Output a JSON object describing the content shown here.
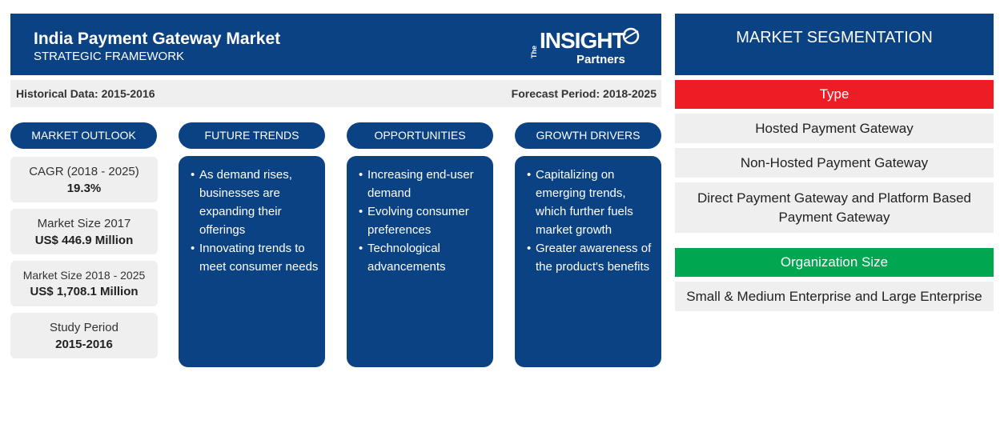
{
  "header": {
    "title": "India Payment Gateway Market",
    "subtitle": "STRATEGIC FRAMEWORK",
    "logo_the": "The",
    "logo_main": "INSIGHT",
    "logo_sub": "Partners"
  },
  "periods": {
    "historical": "Historical Data: 2015-2016",
    "forecast": "Forecast Period: 2018-2025"
  },
  "columns": [
    {
      "heading": "MARKET OUTLOOK"
    },
    {
      "heading": "FUTURE TRENDS",
      "bullets": [
        "As demand rises, businesses are expanding their offerings",
        "Innovating trends to meet consumer needs"
      ]
    },
    {
      "heading": "OPPORTUNITIES",
      "bullets": [
        "Increasing end-user demand",
        "Evolving consumer preferences",
        "Technological advancements"
      ]
    },
    {
      "heading": "GROWTH DRIVERS",
      "bullets": [
        "Capitalizing on emerging trends, which further fuels market growth",
        "Greater awareness of the product's benefits"
      ]
    }
  ],
  "outlook": [
    {
      "label": "CAGR (2018 - 2025)",
      "value": "19.3%"
    },
    {
      "label": "Market Size 2017",
      "value": "US$ 446.9 Million"
    },
    {
      "label": "Market Size 2018 - 2025",
      "value": "US$ 1,708.1 Million"
    },
    {
      "label": "Study Period",
      "value": "2015-2016"
    }
  ],
  "segmentation": {
    "title": "MARKET SEGMENTATION",
    "categories": [
      {
        "name": "Type",
        "color": "#ee1c25",
        "items": [
          "Hosted Payment Gateway",
          "Non-Hosted Payment Gateway",
          "Direct Payment Gateway and Platform Based Payment Gateway"
        ]
      },
      {
        "name": "Organization Size",
        "color": "#00a650",
        "items": [
          "Small & Medium Enterprise and Large Enterprise"
        ]
      }
    ]
  },
  "colors": {
    "primary": "#0b4283",
    "light": "#efefef"
  }
}
